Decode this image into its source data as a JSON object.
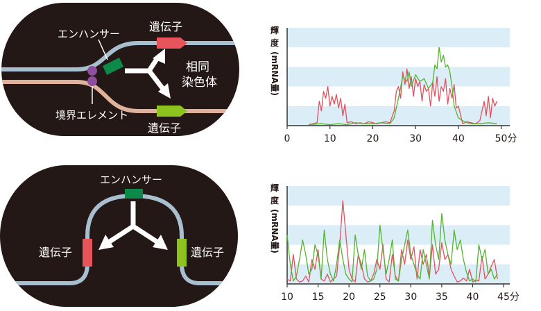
{
  "top_diagram": {
    "enhancer_label": "エンハンサー",
    "insulator_label": "境界エレメント",
    "gene_top_label": "遺伝子",
    "gene_bottom_label": "遺伝子",
    "homolog_label_line1": "相同",
    "homolog_label_line2": "染色体"
  },
  "bottom_diagram": {
    "enhancer_label": "エンハンサー",
    "gene_left_label": "遺伝子",
    "gene_right_label": "遺伝子"
  },
  "colors": {
    "background": "#ffffff",
    "oval": "#231815",
    "chromosome_top": "#a8bfd0",
    "chromosome_bottom": "#e0b29c",
    "gene_red": "#e8545c",
    "gene_green": "#8dc21f",
    "enhancer": "#0d8a4a",
    "insulator": "#8e4ea0",
    "band": "#dbeef8",
    "line_red": "#e4505e",
    "line_green": "#53b32f"
  },
  "chart_data": [
    {
      "type": "line",
      "ylabel_line1": "輝",
      "ylabel_line2": "度",
      "ylabel_rest": "(mRNA量)",
      "xlim": [
        0,
        52
      ],
      "ylim": [
        0,
        100
      ],
      "x_ticks": [
        "0",
        "10",
        "20",
        "30",
        "40",
        "50分"
      ],
      "x_tick_values": [
        0,
        10,
        20,
        30,
        40,
        50
      ],
      "series": [
        {
          "color": "red",
          "x": [
            5,
            6,
            7,
            7.5,
            8,
            8.5,
            9,
            9.5,
            10,
            10.5,
            11,
            11.5,
            12,
            12.5,
            13,
            13.5,
            14,
            15,
            16,
            17,
            18,
            19,
            20,
            21,
            22,
            23,
            24,
            25,
            25.5,
            26,
            26.5,
            27,
            27.5,
            28,
            28.5,
            29,
            29.5,
            30,
            30.5,
            31,
            31.5,
            32,
            32.5,
            33,
            33.5,
            34,
            34.5,
            35,
            35.5,
            36,
            36.5,
            37,
            37.5,
            38,
            38.5,
            39,
            39.5,
            40,
            41,
            42,
            43,
            44,
            45,
            45.5,
            46,
            46.5,
            47,
            47.5,
            48,
            48.5,
            49
          ],
          "y": [
            1,
            2,
            3,
            25,
            15,
            35,
            28,
            40,
            20,
            30,
            22,
            32,
            18,
            28,
            10,
            22,
            3,
            4,
            2,
            3,
            2,
            4,
            3,
            2,
            3,
            4,
            3,
            15,
            35,
            40,
            28,
            55,
            42,
            58,
            38,
            50,
            30,
            48,
            40,
            45,
            25,
            42,
            35,
            38,
            20,
            45,
            30,
            50,
            25,
            40,
            35,
            48,
            22,
            38,
            28,
            42,
            18,
            20,
            2,
            4,
            3,
            2,
            5,
            15,
            25,
            10,
            30,
            8,
            28,
            20,
            25
          ]
        },
        {
          "color": "green",
          "x": [
            5,
            8,
            10,
            12,
            14,
            16,
            18,
            20,
            22,
            24,
            25,
            26,
            27,
            28,
            28.5,
            29,
            30,
            31,
            32,
            33,
            34,
            34.5,
            35,
            35.5,
            36,
            36.5,
            37,
            37.5,
            38,
            38.5,
            39,
            40,
            41,
            42,
            43,
            45,
            47,
            49
          ],
          "y": [
            1,
            2,
            1,
            2,
            1,
            3,
            2,
            2,
            3,
            2,
            8,
            28,
            50,
            45,
            55,
            40,
            52,
            45,
            48,
            38,
            44,
            62,
            58,
            80,
            65,
            72,
            60,
            62,
            55,
            40,
            20,
            8,
            5,
            3,
            2,
            2,
            3,
            2
          ]
        }
      ]
    },
    {
      "type": "line",
      "ylabel_line1": "輝",
      "ylabel_line2": "度",
      "ylabel_rest": "(mRNA量)",
      "xlim": [
        10,
        46
      ],
      "ylim": [
        0,
        100
      ],
      "x_ticks": [
        "10",
        "15",
        "20",
        "25",
        "30",
        "35",
        "40",
        "45分"
      ],
      "x_tick_values": [
        10,
        15,
        20,
        25,
        30,
        35,
        40,
        45
      ],
      "series": [
        {
          "color": "red",
          "x": [
            10,
            10.5,
            11,
            11.5,
            12,
            12.5,
            13,
            13.5,
            14,
            14.5,
            15,
            15.5,
            16,
            16.5,
            17,
            17.5,
            18,
            18.5,
            19,
            19.5,
            20,
            20.5,
            21,
            21.5,
            22,
            22.5,
            23,
            23.5,
            24,
            24.5,
            25,
            25.5,
            26,
            26.5,
            27,
            27.5,
            28,
            28.5,
            29,
            29.5,
            30,
            30.5,
            31,
            31.5,
            32,
            32.5,
            33,
            33.5,
            34,
            34.5,
            35,
            35.5,
            36,
            36.5,
            37,
            37.5,
            38,
            38.5,
            39,
            39.5,
            40,
            40.5,
            41,
            41.5,
            42,
            42.5,
            43,
            43.5,
            44
          ],
          "y": [
            5,
            3,
            30,
            5,
            2,
            3,
            8,
            2,
            25,
            15,
            35,
            5,
            3,
            10,
            2,
            5,
            8,
            40,
            85,
            50,
            15,
            5,
            2,
            30,
            20,
            5,
            2,
            3,
            10,
            25,
            15,
            40,
            5,
            2,
            30,
            8,
            3,
            35,
            20,
            45,
            25,
            38,
            5,
            35,
            20,
            30,
            8,
            40,
            10,
            15,
            42,
            25,
            30,
            15,
            8,
            2,
            3,
            6,
            3,
            15,
            2,
            4,
            3,
            28,
            5,
            10,
            18,
            25,
            5
          ]
        },
        {
          "color": "green",
          "x": [
            10,
            10.5,
            11,
            11.5,
            12,
            12.5,
            13,
            13.5,
            14,
            14.5,
            15,
            15.5,
            16,
            16.5,
            17,
            17.5,
            18,
            18.5,
            19,
            19.5,
            20,
            20.5,
            21,
            21.5,
            22,
            22.5,
            23,
            23.5,
            24,
            24.5,
            25,
            25.5,
            26,
            26.5,
            27,
            27.5,
            28,
            28.5,
            29,
            29.5,
            30,
            30.5,
            31,
            31.5,
            32,
            32.5,
            33,
            33.5,
            34,
            34.5,
            35,
            35.5,
            36,
            36.5,
            37,
            37.5,
            38,
            38.5,
            39,
            39.5,
            40,
            40.5,
            41,
            41.5,
            42,
            42.5,
            43,
            43.5,
            44
          ],
          "y": [
            50,
            20,
            3,
            8,
            25,
            45,
            30,
            10,
            15,
            40,
            30,
            5,
            55,
            25,
            10,
            3,
            20,
            45,
            25,
            10,
            5,
            2,
            50,
            30,
            15,
            35,
            8,
            3,
            5,
            15,
            60,
            35,
            10,
            25,
            45,
            5,
            3,
            25,
            40,
            55,
            30,
            20,
            10,
            5,
            35,
            20,
            5,
            65,
            40,
            25,
            72,
            45,
            30,
            20,
            55,
            35,
            45,
            25,
            12,
            3,
            5,
            2,
            40,
            25,
            35,
            10,
            15,
            5,
            10
          ]
        }
      ]
    }
  ]
}
